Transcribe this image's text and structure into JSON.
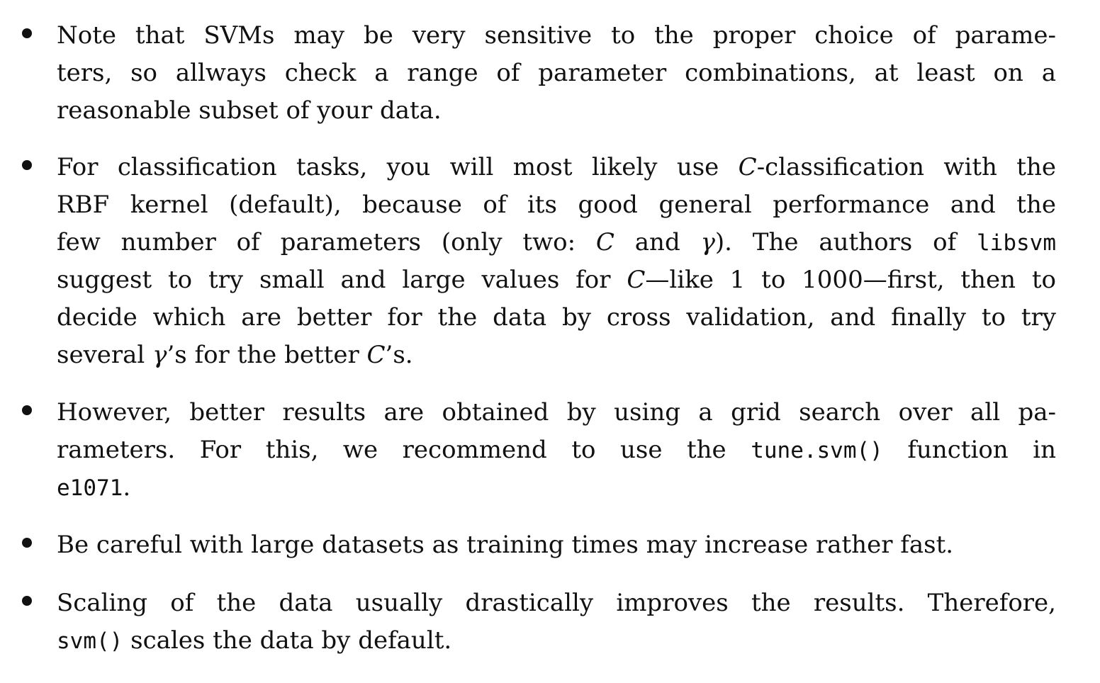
{
  "items": [
    {
      "lines": [
        [
          "Note that SVMs may be very sensitive to the proper choice of parame-"
        ],
        [
          "ters, so allways check a range of parameter combinations, at least on a"
        ],
        [
          "reasonable subset of your data."
        ]
      ]
    },
    {
      "lines": [
        [
          "For classification tasks, you will most likely use ",
          "C",
          "-classification with the"
        ],
        [
          "RBF kernel (default), because of its good general performance and the"
        ],
        [
          "few number of parameters (only two: ",
          "C",
          " and ",
          "γ",
          "). The authors of ",
          "libsvm"
        ],
        [
          "suggest to try small and large values for ",
          "C",
          "—like 1 to 1000—first, then to"
        ],
        [
          "decide which are better for the data by cross validation, and finally to try"
        ],
        [
          "several ",
          "γ",
          "’s for the better ",
          "C",
          "’s."
        ]
      ]
    },
    {
      "lines": [
        [
          "However, better results are obtained by using a grid search over all pa-"
        ],
        [
          "rameters. For this, we recommend to use the ",
          "tune.svm()",
          " function in"
        ],
        [
          "e1071",
          "."
        ]
      ]
    },
    {
      "lines": [
        [
          "Be careful with large datasets as training times may increase rather fast."
        ]
      ]
    },
    {
      "lines": [
        [
          "Scaling of the data usually drastically improves the results. Therefore,"
        ],
        [
          "svm()",
          " scales the data by default."
        ]
      ]
    }
  ]
}
